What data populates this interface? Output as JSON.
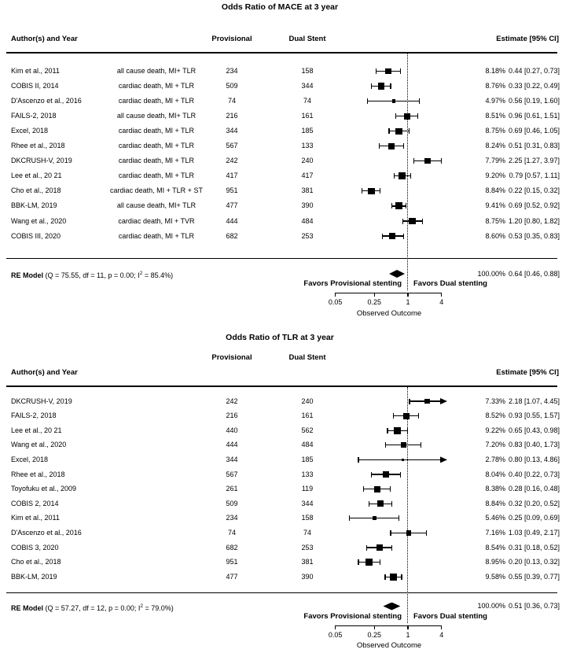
{
  "colors": {
    "foreground": "#000000",
    "background": "#ffffff"
  },
  "chart_data": [
    {
      "type": "forest",
      "title": "Odds Ratio of MACE at 3 year",
      "columns": {
        "author": "Author(s) and Year",
        "provisional": "Provisional",
        "dual_stent": "Dual Stent",
        "estimate": "Estimate [95% CI]"
      },
      "x_axis": {
        "label": "Observed Outcome",
        "scale": "log",
        "ticks": [
          0.05,
          0.25,
          1,
          4
        ],
        "range": [
          0.05,
          4
        ]
      },
      "reference_line": 1,
      "favors_left": "Favors Provisional stenting",
      "favors_right": "Favors Dual stenting",
      "rows": [
        {
          "author": "Kim et al., 2011",
          "endpoint": "all cause death, MI+ TLR",
          "provisional": 234,
          "dual_stent": 158,
          "weight_pct": 8.18,
          "or": 0.44,
          "ci_low": 0.27,
          "ci_high": 0.73
        },
        {
          "author": "COBIS II, 2014",
          "endpoint": "cardiac death, MI + TLR",
          "provisional": 509,
          "dual_stent": 344,
          "weight_pct": 8.76,
          "or": 0.33,
          "ci_low": 0.22,
          "ci_high": 0.49
        },
        {
          "author": "D'Ascenzo et al., 2016",
          "endpoint": "cardiac death, MI + TLR",
          "provisional": 74,
          "dual_stent": 74,
          "weight_pct": 4.97,
          "or": 0.56,
          "ci_low": 0.19,
          "ci_high": 1.6
        },
        {
          "author": "FAILS-2, 2018",
          "endpoint": "all cause death, MI+ TLR",
          "provisional": 216,
          "dual_stent": 161,
          "weight_pct": 8.51,
          "or": 0.96,
          "ci_low": 0.61,
          "ci_high": 1.51
        },
        {
          "author": "Excel, 2018",
          "endpoint": "cardiac death, MI + TLR",
          "provisional": 344,
          "dual_stent": 185,
          "weight_pct": 8.75,
          "or": 0.69,
          "ci_low": 0.46,
          "ci_high": 1.05
        },
        {
          "author": "Rhee et al., 2018",
          "endpoint": "cardiac death, MI + TLR",
          "provisional": 567,
          "dual_stent": 133,
          "weight_pct": 8.24,
          "or": 0.51,
          "ci_low": 0.31,
          "ci_high": 0.83
        },
        {
          "author": "DKCRUSH-V, 2019",
          "endpoint": "cardiac death, MI + TLR",
          "provisional": 242,
          "dual_stent": 240,
          "weight_pct": 7.79,
          "or": 2.25,
          "ci_low": 1.27,
          "ci_high": 3.97
        },
        {
          "author": "Lee et al., 20 21",
          "endpoint": "cardiac death, MI + TLR",
          "provisional": 417,
          "dual_stent": 417,
          "weight_pct": 9.2,
          "or": 0.79,
          "ci_low": 0.57,
          "ci_high": 1.11
        },
        {
          "author": "Cho et al., 2018",
          "endpoint": "cardiac death, MI + TLR + ST",
          "provisional": 951,
          "dual_stent": 381,
          "weight_pct": 8.84,
          "or": 0.22,
          "ci_low": 0.15,
          "ci_high": 0.32
        },
        {
          "author": "BBK-LM, 2019",
          "endpoint": "all cause death, MI+ TLR",
          "provisional": 477,
          "dual_stent": 390,
          "weight_pct": 9.41,
          "or": 0.69,
          "ci_low": 0.52,
          "ci_high": 0.92
        },
        {
          "author": "Wang et al., 2020",
          "endpoint": "cardiac death, MI + TVR",
          "provisional": 444,
          "dual_stent": 484,
          "weight_pct": 8.75,
          "or": 1.2,
          "ci_low": 0.8,
          "ci_high": 1.82
        },
        {
          "author": "COBIS III, 2020",
          "endpoint": "cardiac death, MI + TLR",
          "provisional": 682,
          "dual_stent": 253,
          "weight_pct": 8.6,
          "or": 0.53,
          "ci_low": 0.35,
          "ci_high": 0.83
        }
      ],
      "summary": {
        "label": "RE Model",
        "q": "75.55",
        "df": "11",
        "p": "0.00",
        "i_squared": "85.4%",
        "weight_pct": 100,
        "or": 0.64,
        "ci_low": 0.46,
        "ci_high": 0.88
      }
    },
    {
      "type": "forest",
      "title": "Odds Ratio of TLR at 3 year",
      "columns": {
        "author": "Author(s) and Year",
        "provisional": "Provisional",
        "dual_stent": "Dual Stent",
        "estimate": "Estimate [95% CI]"
      },
      "x_axis": {
        "label": "Observed Outcome",
        "scale": "log",
        "ticks": [
          0.05,
          0.25,
          1,
          4
        ],
        "range": [
          0.05,
          4
        ]
      },
      "reference_line": 1,
      "favors_left": "Favors Provisional stenting",
      "favors_right": "Favors Dual stenting",
      "rows": [
        {
          "author": "DKCRUSH-V, 2019",
          "provisional": 242,
          "dual_stent": 240,
          "weight_pct": 7.33,
          "or": 2.18,
          "ci_low": 1.07,
          "ci_high": 4.45
        },
        {
          "author": "FAILS-2, 2018",
          "provisional": 216,
          "dual_stent": 161,
          "weight_pct": 8.52,
          "or": 0.93,
          "ci_low": 0.55,
          "ci_high": 1.57
        },
        {
          "author": "Lee et al., 20 21",
          "provisional": 440,
          "dual_stent": 562,
          "weight_pct": 9.22,
          "or": 0.65,
          "ci_low": 0.43,
          "ci_high": 0.98
        },
        {
          "author": "Wang et al., 2020",
          "provisional": 444,
          "dual_stent": 484,
          "weight_pct": 7.2,
          "or": 0.83,
          "ci_low": 0.4,
          "ci_high": 1.73
        },
        {
          "author": "Excel, 2018",
          "provisional": 344,
          "dual_stent": 185,
          "weight_pct": 2.78,
          "or": 0.8,
          "ci_low": 0.13,
          "ci_high": 4.86
        },
        {
          "author": "Rhee et al., 2018",
          "provisional": 567,
          "dual_stent": 133,
          "weight_pct": 8.04,
          "or": 0.4,
          "ci_low": 0.22,
          "ci_high": 0.73
        },
        {
          "author": "Toyofuku et al., 2009",
          "provisional": 261,
          "dual_stent": 119,
          "weight_pct": 8.38,
          "or": 0.28,
          "ci_low": 0.16,
          "ci_high": 0.48
        },
        {
          "author": "COBIS 2, 2014",
          "provisional": 509,
          "dual_stent": 344,
          "weight_pct": 8.84,
          "or": 0.32,
          "ci_low": 0.2,
          "ci_high": 0.52
        },
        {
          "author": "Kim et al., 2011",
          "provisional": 234,
          "dual_stent": 158,
          "weight_pct": 5.46,
          "or": 0.25,
          "ci_low": 0.09,
          "ci_high": 0.69
        },
        {
          "author": "D'Ascenzo et al., 2016",
          "provisional": 74,
          "dual_stent": 74,
          "weight_pct": 7.16,
          "or": 1.03,
          "ci_low": 0.49,
          "ci_high": 2.17
        },
        {
          "author": "COBIS 3, 2020",
          "provisional": 682,
          "dual_stent": 253,
          "weight_pct": 8.54,
          "or": 0.31,
          "ci_low": 0.18,
          "ci_high": 0.52
        },
        {
          "author": "Cho et al., 2018",
          "provisional": 951,
          "dual_stent": 381,
          "weight_pct": 8.95,
          "or": 0.2,
          "ci_low": 0.13,
          "ci_high": 0.32
        },
        {
          "author": "BBK-LM, 2019",
          "provisional": 477,
          "dual_stent": 390,
          "weight_pct": 9.58,
          "or": 0.55,
          "ci_low": 0.39,
          "ci_high": 0.77
        }
      ],
      "summary": {
        "label": "RE Model",
        "q": "57.27",
        "df": "12",
        "p": "0.00",
        "i_squared": "79.0%",
        "weight_pct": 100,
        "or": 0.51,
        "ci_low": 0.36,
        "ci_high": 0.73
      }
    }
  ]
}
